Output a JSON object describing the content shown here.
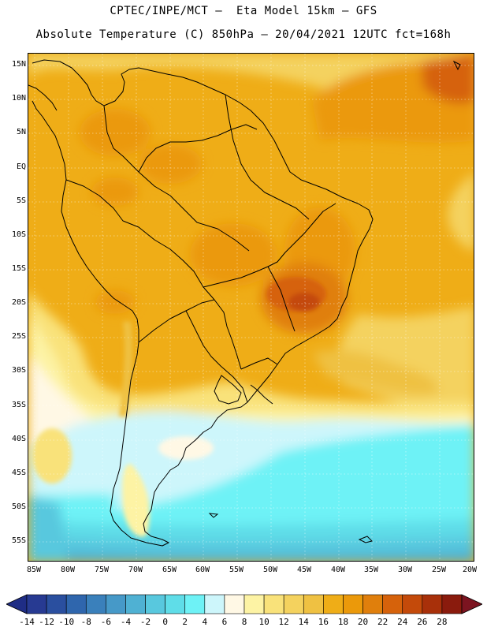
{
  "title": {
    "line1": "CPTEC/INPE/MCT –  Eta Model 15km – GFS",
    "line2": "Absolute Temperature (C) 850hPa – 20/04/2021 12UTC fct=168h"
  },
  "map": {
    "lat_labels": [
      "15N",
      "10N",
      "5N",
      "EQ",
      "5S",
      "10S",
      "15S",
      "20S",
      "25S",
      "30S",
      "35S",
      "40S",
      "45S",
      "50S",
      "55S"
    ],
    "lon_labels": [
      "85W",
      "80W",
      "75W",
      "70W",
      "65W",
      "60W",
      "55W",
      "50W",
      "45W",
      "40W",
      "35W",
      "30W",
      "25W",
      "20W"
    ]
  },
  "colorbar": {
    "labels": [
      "-14",
      "-12",
      "-10",
      "-8",
      "-6",
      "-4",
      "-2",
      "0",
      "2",
      "4",
      "6",
      "8",
      "10",
      "12",
      "14",
      "16",
      "18",
      "20",
      "22",
      "24",
      "26",
      "28"
    ],
    "colors": [
      "#273a92",
      "#2a4f9f",
      "#2f66ad",
      "#3a80bb",
      "#4699c8",
      "#4fb1d3",
      "#58c8de",
      "#5fdde8",
      "#6ef2f6",
      "#cdf6fb",
      "#fff8e5",
      "#fdf3a4",
      "#f9e27a",
      "#f4d25e",
      "#efc142",
      "#efad17",
      "#eb990a",
      "#e07f0c",
      "#d6620b",
      "#c44a0a",
      "#a8300a",
      "#8a1b0d"
    ],
    "low_color": "#1f2d85",
    "high_color": "#7c1420"
  }
}
